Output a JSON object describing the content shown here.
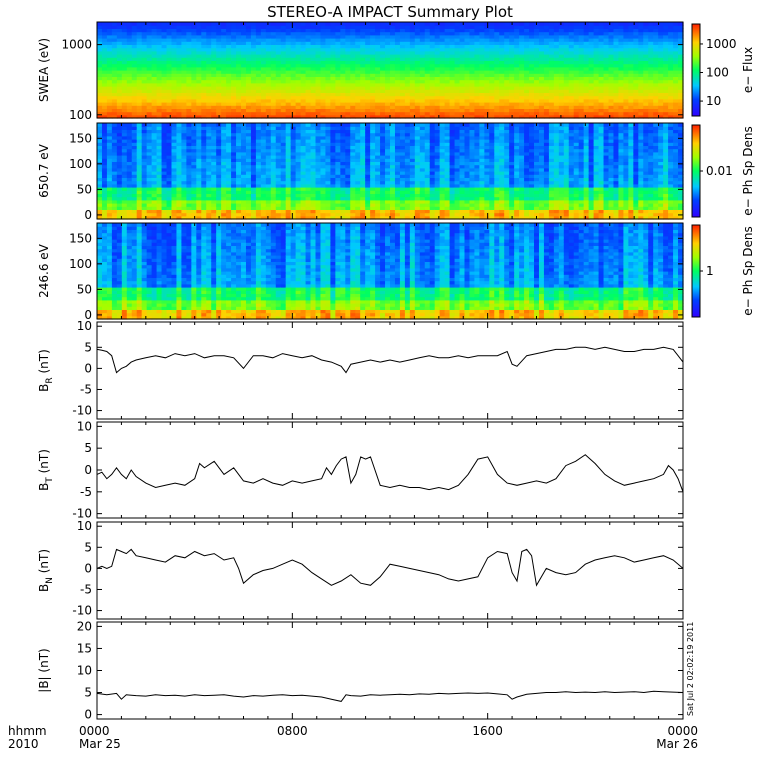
{
  "title": "STEREO-A IMPACT Summary Plot",
  "timestamp_stamp": "Sat Jul  2 02:02:19 2011",
  "x_axis": {
    "label_top": "hhmm",
    "label_bottom": "2010",
    "ticks": [
      {
        "value": 0,
        "top": "0000",
        "bottom": "Mar 25"
      },
      {
        "value": 8,
        "top": "0800",
        "bottom": ""
      },
      {
        "value": 16,
        "top": "1600",
        "bottom": ""
      },
      {
        "value": 24,
        "top": "0000",
        "bottom": "Mar 26"
      }
    ],
    "range_hours": [
      0,
      24
    ]
  },
  "chart_data": [
    {
      "type": "heatmap",
      "id": "swea",
      "ylabel": "SWEA (eV)",
      "y_scale": "log",
      "ylim": [
        90,
        2100
      ],
      "yticks": [
        {
          "v": 100,
          "label": "100"
        },
        {
          "v": 1000,
          "label": "1000"
        }
      ],
      "colorbar": {
        "label": "e− Flux",
        "scale": "log",
        "range": [
          3,
          5000
        ],
        "ticks": [
          {
            "v": 10,
            "label": "10"
          },
          {
            "v": 100,
            "label": "100"
          },
          {
            "v": 1000,
            "label": "1000"
          }
        ]
      },
      "description_bands": "energy-flux spectrogram: high flux at low energy decreasing with energy"
    },
    {
      "type": "heatmap",
      "id": "pad650",
      "ylabel": "650.7 eV",
      "ylim": [
        -8,
        180
      ],
      "yticks": [
        {
          "v": 0,
          "label": "0"
        },
        {
          "v": 50,
          "label": "50"
        },
        {
          "v": 100,
          "label": "100"
        },
        {
          "v": 150,
          "label": "150"
        }
      ],
      "colorbar": {
        "label": "e− Ph Sp Dens",
        "scale": "log",
        "range": [
          0.001,
          0.1
        ],
        "ticks": [
          {
            "v": 0.01,
            "label": "0.01"
          }
        ]
      }
    },
    {
      "type": "heatmap",
      "id": "pad246",
      "ylabel": "246.6 eV",
      "ylim": [
        -8,
        180
      ],
      "yticks": [
        {
          "v": 0,
          "label": "0"
        },
        {
          "v": 50,
          "label": "50"
        },
        {
          "v": 100,
          "label": "100"
        },
        {
          "v": 150,
          "label": "150"
        }
      ],
      "colorbar": {
        "label": "e− Ph Sp Dens",
        "scale": "log",
        "range": [
          0.1,
          10
        ],
        "ticks": [
          {
            "v": 1,
            "label": "1"
          }
        ]
      }
    },
    {
      "type": "line",
      "id": "br",
      "ylabel_main": "B",
      "ylabel_sub": "R",
      "ylabel_unit": " (nT)",
      "ylim": [
        -12,
        11
      ],
      "yticks": [
        -10,
        -5,
        0,
        5,
        10
      ],
      "x": [
        0,
        0.2,
        0.4,
        0.6,
        0.8,
        1.0,
        1.2,
        1.4,
        1.6,
        2.0,
        2.4,
        2.8,
        3.2,
        3.6,
        4.0,
        4.4,
        4.8,
        5.2,
        5.6,
        6.0,
        6.4,
        6.8,
        7.2,
        7.6,
        8.0,
        8.4,
        8.8,
        9.2,
        9.6,
        10.0,
        10.2,
        10.4,
        10.8,
        11.2,
        11.6,
        12.0,
        12.4,
        12.8,
        13.2,
        13.6,
        14.0,
        14.4,
        14.8,
        15.2,
        15.6,
        16.0,
        16.4,
        16.8,
        17.0,
        17.2,
        17.6,
        18.0,
        18.4,
        18.8,
        19.2,
        19.6,
        20.0,
        20.4,
        20.8,
        21.2,
        21.6,
        22.0,
        22.4,
        22.8,
        23.2,
        23.6,
        23.8,
        24.0
      ],
      "y": [
        4.5,
        4.3,
        4.0,
        3.0,
        -1.0,
        0.0,
        0.5,
        1.5,
        2.0,
        2.5,
        3.0,
        2.5,
        3.5,
        3.0,
        3.5,
        2.5,
        3.0,
        3.0,
        2.5,
        0.0,
        3.0,
        3.0,
        2.5,
        3.5,
        3.0,
        2.5,
        3.0,
        2.0,
        1.5,
        0.5,
        -1.0,
        1.0,
        1.5,
        2.0,
        1.5,
        2.0,
        1.5,
        2.0,
        2.5,
        3.0,
        2.5,
        2.5,
        3.0,
        2.5,
        3.0,
        3.0,
        3.0,
        4.0,
        1.0,
        0.5,
        3.0,
        3.5,
        4.0,
        4.5,
        4.5,
        5.0,
        5.0,
        4.5,
        5.0,
        4.5,
        4.0,
        4.0,
        4.5,
        4.5,
        5.0,
        4.5,
        3.0,
        1.5
      ]
    },
    {
      "type": "line",
      "id": "bt",
      "ylabel_main": "B",
      "ylabel_sub": "T",
      "ylabel_unit": " (nT)",
      "ylim": [
        -11,
        11
      ],
      "yticks": [
        -10,
        -5,
        0,
        5,
        10
      ],
      "x": [
        0,
        0.2,
        0.4,
        0.6,
        0.8,
        1.0,
        1.2,
        1.4,
        1.6,
        2.0,
        2.4,
        2.8,
        3.2,
        3.6,
        4.0,
        4.2,
        4.4,
        4.8,
        5.2,
        5.6,
        6.0,
        6.4,
        6.8,
        7.2,
        7.6,
        8.0,
        8.4,
        8.8,
        9.2,
        9.4,
        9.6,
        9.8,
        10.0,
        10.2,
        10.4,
        10.6,
        10.8,
        11.0,
        11.2,
        11.6,
        12.0,
        12.4,
        12.8,
        13.2,
        13.6,
        14.0,
        14.4,
        14.8,
        15.2,
        15.6,
        16.0,
        16.4,
        16.8,
        17.2,
        17.6,
        18.0,
        18.4,
        18.8,
        19.2,
        19.6,
        20.0,
        20.4,
        20.8,
        21.2,
        21.6,
        22.0,
        22.4,
        22.8,
        23.2,
        23.4,
        23.6,
        23.8,
        24.0
      ],
      "y": [
        -1.0,
        -0.5,
        -2.0,
        -1.0,
        0.5,
        -1.0,
        -2.0,
        0.0,
        -1.5,
        -3.0,
        -4.0,
        -3.5,
        -3.0,
        -3.5,
        -2.0,
        1.5,
        0.5,
        2.0,
        -1.0,
        0.5,
        -2.5,
        -3.0,
        -2.0,
        -3.0,
        -3.5,
        -2.5,
        -3.0,
        -2.5,
        -2.0,
        0.5,
        -1.0,
        1.0,
        2.5,
        3.0,
        -3.0,
        -1.0,
        3.0,
        2.5,
        3.0,
        -3.5,
        -4.0,
        -3.5,
        -4.0,
        -4.0,
        -4.5,
        -4.0,
        -4.5,
        -3.5,
        -1.0,
        2.5,
        3.0,
        -1.0,
        -3.0,
        -3.5,
        -3.0,
        -2.5,
        -3.0,
        -2.0,
        1.0,
        2.0,
        3.5,
        1.5,
        -1.0,
        -2.5,
        -3.5,
        -3.0,
        -2.5,
        -2.0,
        -1.0,
        1.0,
        0.0,
        -2.0,
        -5.0
      ]
    },
    {
      "type": "line",
      "id": "bn",
      "ylabel_main": "B",
      "ylabel_sub": "N",
      "ylabel_unit": " (nT)",
      "ylim": [
        -12,
        11
      ],
      "yticks": [
        -10,
        -5,
        0,
        5,
        10
      ],
      "x": [
        0,
        0.2,
        0.4,
        0.6,
        0.8,
        1.0,
        1.2,
        1.4,
        1.6,
        2.0,
        2.4,
        2.8,
        3.2,
        3.6,
        4.0,
        4.4,
        4.8,
        5.2,
        5.6,
        5.8,
        6.0,
        6.4,
        6.8,
        7.2,
        7.6,
        8.0,
        8.4,
        8.8,
        9.2,
        9.6,
        10.0,
        10.4,
        10.8,
        11.2,
        11.6,
        12.0,
        12.4,
        12.8,
        13.2,
        13.6,
        14.0,
        14.4,
        14.8,
        15.2,
        15.6,
        16.0,
        16.4,
        16.8,
        17.0,
        17.2,
        17.4,
        17.6,
        17.8,
        18.0,
        18.4,
        18.8,
        19.2,
        19.6,
        20.0,
        20.4,
        20.8,
        21.2,
        21.6,
        22.0,
        22.4,
        22.8,
        23.2,
        23.6,
        24.0
      ],
      "y": [
        0.0,
        0.5,
        0.0,
        0.5,
        4.5,
        4.0,
        3.5,
        4.5,
        3.0,
        2.5,
        2.0,
        1.5,
        3.0,
        2.5,
        4.0,
        3.0,
        3.5,
        2.0,
        2.5,
        0.0,
        -3.5,
        -1.5,
        -0.5,
        0.0,
        1.0,
        2.0,
        1.0,
        -1.0,
        -2.5,
        -4.0,
        -3.0,
        -1.5,
        -3.5,
        -4.0,
        -2.0,
        1.0,
        0.5,
        0.0,
        -0.5,
        -1.0,
        -1.5,
        -2.5,
        -3.0,
        -2.5,
        -2.0,
        2.5,
        4.0,
        3.5,
        -1.0,
        -3.0,
        4.0,
        4.5,
        3.0,
        -4.0,
        0.0,
        -1.0,
        -1.5,
        -1.0,
        1.0,
        2.0,
        2.5,
        3.0,
        2.5,
        1.5,
        2.0,
        2.5,
        3.0,
        2.0,
        0.0
      ]
    },
    {
      "type": "line",
      "id": "bmag",
      "ylabel_main": "|B|",
      "ylabel_sub": "",
      "ylabel_unit": " (nT)",
      "ylim": [
        -1,
        21
      ],
      "yticks": [
        0,
        5,
        10,
        15,
        20
      ],
      "x": [
        0,
        0.4,
        0.8,
        1.0,
        1.2,
        1.6,
        2.0,
        2.4,
        2.8,
        3.2,
        3.6,
        4.0,
        4.4,
        4.8,
        5.2,
        5.6,
        6.0,
        6.4,
        6.8,
        7.2,
        7.6,
        8.0,
        8.4,
        8.8,
        9.2,
        9.6,
        10.0,
        10.2,
        10.4,
        10.8,
        11.2,
        11.6,
        12.0,
        12.4,
        12.8,
        13.2,
        13.6,
        14.0,
        14.4,
        14.8,
        15.2,
        15.6,
        16.0,
        16.4,
        16.8,
        17.0,
        17.2,
        17.6,
        18.0,
        18.4,
        18.8,
        19.2,
        19.6,
        20.0,
        20.4,
        20.8,
        21.2,
        21.6,
        22.0,
        22.4,
        22.8,
        23.2,
        23.6,
        24.0
      ],
      "y": [
        4.8,
        4.5,
        4.8,
        3.5,
        4.5,
        4.3,
        4.2,
        4.5,
        4.3,
        4.4,
        4.2,
        4.5,
        4.3,
        4.4,
        4.5,
        4.2,
        4.0,
        4.3,
        4.2,
        4.4,
        4.5,
        4.3,
        4.4,
        4.2,
        4.0,
        3.5,
        3.0,
        4.5,
        4.3,
        4.2,
        4.5,
        4.4,
        4.5,
        4.6,
        4.5,
        4.7,
        4.6,
        4.8,
        4.7,
        4.8,
        4.9,
        4.8,
        4.9,
        4.7,
        4.5,
        3.5,
        4.0,
        4.6,
        4.8,
        5.0,
        5.0,
        5.2,
        5.0,
        5.1,
        5.0,
        5.2,
        5.0,
        5.1,
        5.2,
        5.0,
        5.3,
        5.2,
        5.1,
        5.0
      ]
    }
  ]
}
